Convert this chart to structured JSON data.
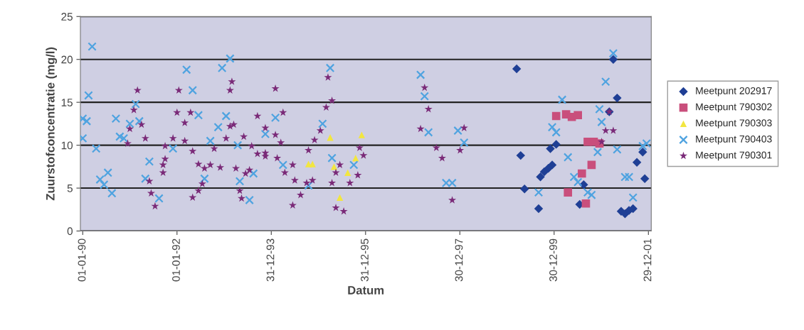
{
  "chart_data": {
    "type": "scatter",
    "xlabel": "Datum",
    "ylabel": "Zuurstofconcentratie (mg/l)",
    "xlim": [
      "1989-12-14",
      "2002-01-20"
    ],
    "xticks": [
      {
        "value": "1990-01-01",
        "label": "01-01-90"
      },
      {
        "value": "1992-01-01",
        "label": "01-01-92"
      },
      {
        "value": "1993-12-31",
        "label": "31-12-93"
      },
      {
        "value": "1995-12-31",
        "label": "31-12-95"
      },
      {
        "value": "1997-12-30",
        "label": "30-12-97"
      },
      {
        "value": "1999-12-30",
        "label": "30-12-99"
      },
      {
        "value": "2001-12-29",
        "label": "29-12-01"
      }
    ],
    "ylim": [
      0,
      25
    ],
    "yticks": [
      0,
      5,
      10,
      15,
      20,
      25
    ],
    "grid": "y",
    "legend": "right",
    "series": [
      {
        "name": "Meetpunt 202917",
        "color": "#1f3f95",
        "marker": "diamond",
        "x": [
          "1999-03-15",
          "1999-04-15",
          "1999-05-15",
          "1999-09-01",
          "1999-09-15",
          "1999-10-15",
          "1999-11-15",
          "1999-12-15",
          "1999-12-01",
          "2000-01-15",
          "2000-07-15",
          "2000-08-15",
          "2001-03-01",
          "2001-04-01",
          "2001-05-01",
          "2001-06-01",
          "2001-07-01",
          "2001-08-01",
          "2001-09-01",
          "2001-10-01",
          "2001-11-15",
          "2001-12-01"
        ],
        "values": [
          18.9,
          8.8,
          4.9,
          2.6,
          6.3,
          6.9,
          7.3,
          7.7,
          9.6,
          10.1,
          3.1,
          5.4,
          13.9,
          20.0,
          15.5,
          2.3,
          2.0,
          2.4,
          2.6,
          8.0,
          9.2,
          6.1
        ]
      },
      {
        "name": "Meetpunt 790302",
        "color": "#c94f7c",
        "marker": "square",
        "x": [
          "2000-01-15",
          "2000-04-01",
          "2000-05-15",
          "2000-07-01",
          "2000-09-15",
          "2000-11-01",
          "2000-12-15",
          "2000-10-15",
          "2000-08-01",
          "2000-04-15",
          "2000-09-01"
        ],
        "values": [
          13.4,
          13.6,
          13.3,
          13.5,
          10.4,
          10.4,
          10.2,
          7.7,
          6.7,
          4.5,
          3.2
        ]
      },
      {
        "name": "Meetpunt 790303",
        "color": "#f2e640",
        "marker": "triangle",
        "x": [
          "1995-04-01",
          "1995-12-01",
          "1994-10-15",
          "1994-11-15",
          "1995-05-01",
          "1995-08-15",
          "1995-10-15",
          "1995-06-15"
        ],
        "values": [
          10.9,
          11.2,
          7.8,
          7.8,
          7.5,
          6.8,
          8.5,
          3.9
        ]
      },
      {
        "name": "Meetpunt 790403",
        "color": "#4fa3e0",
        "marker": "cross",
        "x": [
          "1990-01-01",
          "1990-01-01",
          "1990-02-01",
          "1990-02-15",
          "1990-03-15",
          "1990-04-15",
          "1990-05-15",
          "1990-06-15",
          "1990-07-15",
          "1990-08-15",
          "1990-09-15",
          "1990-10-15",
          "1990-11-15",
          "1991-01-01",
          "1991-02-15",
          "1991-03-15",
          "1991-05-01",
          "1991-06-01",
          "1991-08-15",
          "1991-12-01",
          "1992-03-15",
          "1992-05-01",
          "1992-06-15",
          "1992-08-01",
          "1992-09-15",
          "1992-11-15",
          "1992-12-15",
          "1993-01-15",
          "1993-02-15",
          "1993-04-15",
          "1993-05-01",
          "1993-07-15",
          "1993-08-15",
          "1993-11-15",
          "1994-02-01",
          "1994-04-01",
          "1994-10-15",
          "1995-02-01",
          "1995-04-01",
          "1995-04-15",
          "1995-10-01",
          "1997-03-01",
          "1997-04-01",
          "1997-05-01",
          "1997-09-15",
          "1997-11-01",
          "1997-12-15",
          "1998-02-01",
          "1999-09-01",
          "1999-12-15",
          "2000-01-15",
          "2000-03-01",
          "2000-04-15",
          "2000-06-01",
          "2000-07-01",
          "2000-09-15",
          "2000-10-15",
          "2000-12-01",
          "2000-12-15",
          "2001-01-01",
          "2001-02-01",
          "2001-04-01",
          "2001-05-01",
          "2001-07-01",
          "2001-08-01",
          "2001-09-01",
          "2001-11-15",
          "2001-12-15"
        ],
        "values": [
          10.8,
          13.1,
          12.8,
          15.8,
          21.5,
          9.6,
          6.0,
          5.4,
          6.8,
          4.4,
          13.1,
          11.0,
          10.8,
          12.5,
          14.8,
          12.8,
          6.1,
          8.1,
          3.8,
          9.6,
          18.8,
          16.4,
          13.5,
          6.1,
          10.5,
          12.1,
          19.0,
          13.4,
          20.1,
          10.0,
          5.8,
          3.6,
          6.7,
          11.3,
          13.2,
          7.7,
          5.3,
          12.5,
          19.0,
          8.5,
          7.7,
          18.2,
          15.7,
          11.5,
          5.6,
          5.6,
          11.7,
          10.3,
          4.5,
          12.1,
          11.5,
          15.3,
          8.6,
          6.3,
          5.7,
          4.5,
          4.2,
          9.2,
          14.2,
          12.7,
          17.4,
          20.7,
          9.5,
          6.3,
          6.3,
          3.9,
          9.9,
          10.2
        ]
      },
      {
        "name": "Meetpunt 790301",
        "color": "#7a2a78",
        "marker": "star",
        "x": [
          "1990-12-15",
          "1991-01-01",
          "1991-02-01",
          "1991-03-01",
          "1991-04-01",
          "1991-05-01",
          "1991-06-01",
          "1991-06-15",
          "1991-07-15",
          "1991-09-15",
          "1991-09-15",
          "1991-10-01",
          "1991-10-01",
          "1991-12-01",
          "1992-01-01",
          "1992-01-15",
          "1992-03-01",
          "1992-03-01",
          "1992-04-15",
          "1992-05-01",
          "1992-05-01",
          "1992-06-15",
          "1992-06-15",
          "1992-07-15",
          "1992-08-01",
          "1992-09-15",
          "1992-10-15",
          "1992-12-01",
          "1993-01-15",
          "1993-02-15",
          "1993-02-15",
          "1993-03-01",
          "1993-03-15",
          "1993-04-01",
          "1993-05-01",
          "1993-05-15",
          "1993-06-01",
          "1993-06-15",
          "1993-07-15",
          "1993-08-01",
          "1993-09-15",
          "1993-09-15",
          "1993-11-15",
          "1993-11-15",
          "1993-11-15",
          "1994-02-01",
          "1994-02-01",
          "1994-02-15",
          "1994-03-15",
          "1994-04-01",
          "1994-04-15",
          "1994-06-15",
          "1994-06-15",
          "1994-07-01",
          "1994-08-15",
          "1994-10-01",
          "1994-10-15",
          "1994-11-15",
          "1994-12-01",
          "1995-01-15",
          "1995-03-01",
          "1995-03-15",
          "1995-04-15",
          "1995-04-15",
          "1995-05-15",
          "1995-05-15",
          "1995-06-15",
          "1995-07-15",
          "1995-09-01",
          "1995-11-01",
          "1995-11-15",
          "1995-12-15",
          "1997-03-01",
          "1997-04-01",
          "1997-05-01",
          "1997-07-01",
          "1997-08-15",
          "1997-11-01",
          "1998-01-01",
          "1998-02-01",
          "2001-01-01",
          "2001-02-01",
          "2001-03-01",
          "2001-04-01"
        ],
        "values": [
          10.2,
          11.9,
          14.1,
          16.4,
          12.4,
          10.8,
          5.8,
          4.4,
          2.9,
          7.7,
          6.8,
          9.9,
          8.4,
          10.8,
          13.8,
          16.4,
          12.6,
          10.5,
          13.8,
          9.3,
          3.9,
          4.7,
          7.8,
          5.5,
          7.3,
          7.7,
          9.6,
          7.4,
          10.8,
          12.2,
          16.4,
          17.4,
          12.4,
          7.3,
          4.7,
          3.8,
          11.0,
          6.7,
          7.1,
          9.9,
          13.4,
          9.0,
          9.1,
          8.7,
          12.0,
          16.6,
          11.2,
          8.5,
          10.3,
          13.8,
          6.8,
          7.7,
          3.0,
          5.9,
          4.2,
          5.6,
          9.4,
          5.9,
          10.6,
          11.7,
          14.4,
          17.9,
          15.2,
          5.6,
          6.8,
          2.7,
          7.7,
          2.3,
          5.6,
          6.5,
          9.7,
          8.8,
          11.9,
          16.7,
          14.2,
          9.7,
          8.5,
          3.6,
          9.4,
          12.0,
          10.4,
          11.7,
          13.9,
          11.7
        ]
      }
    ]
  }
}
